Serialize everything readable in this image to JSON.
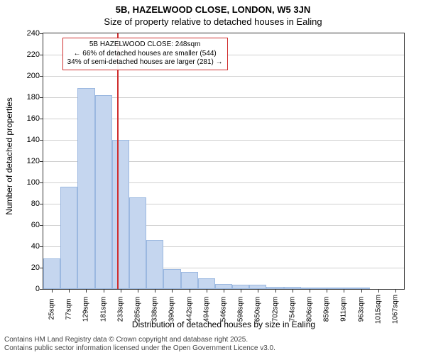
{
  "chart": {
    "type": "histogram",
    "title": "5B, HAZELWOOD CLOSE, LONDON, W5 3JN",
    "subtitle": "Size of property relative to detached houses in Ealing",
    "y_axis": {
      "label": "Number of detached properties",
      "min": 0,
      "max": 240,
      "tick_step": 20,
      "ticks": [
        0,
        20,
        40,
        60,
        80,
        100,
        120,
        140,
        160,
        180,
        200,
        220,
        240
      ]
    },
    "x_axis": {
      "label": "Distribution of detached houses by size in Ealing",
      "tick_labels": [
        "25sqm",
        "77sqm",
        "129sqm",
        "181sqm",
        "233sqm",
        "285sqm",
        "338sqm",
        "390sqm",
        "442sqm",
        "494sqm",
        "546sqm",
        "598sqm",
        "650sqm",
        "702sqm",
        "754sqm",
        "806sqm",
        "859sqm",
        "911sqm",
        "963sqm",
        "1015sqm",
        "1067sqm"
      ]
    },
    "bars": {
      "values": [
        29,
        96,
        189,
        182,
        140,
        86,
        46,
        19,
        16,
        10,
        5,
        4,
        4,
        2,
        2,
        1,
        1,
        1,
        1,
        0,
        0
      ],
      "fill_color": "#c5d6ef",
      "border_color": "#9bb8e0",
      "count": 21
    },
    "reference_line": {
      "color": "#d03030",
      "bar_index": 4,
      "fraction_in_bar": 0.28
    },
    "annotation": {
      "border_color": "#d03030",
      "lines": [
        "5B HAZELWOOD CLOSE: 248sqm",
        "← 66% of detached houses are smaller (544)",
        "34% of semi-detached houses are larger (281) →"
      ]
    },
    "grid_color": "#d0d0d0",
    "background_color": "#ffffff",
    "plot_border_color": "#333333",
    "font_family": "Arial, sans-serif",
    "title_fontsize": 13,
    "subtitle_fontsize": 13,
    "axis_label_fontsize": 12,
    "tick_fontsize": 11,
    "annotation_fontsize": 10,
    "footer_fontsize": 10
  },
  "footer": {
    "line1": "Contains HM Land Registry data © Crown copyright and database right 2025.",
    "line2": "Contains public sector information licensed under the Open Government Licence v3.0."
  }
}
